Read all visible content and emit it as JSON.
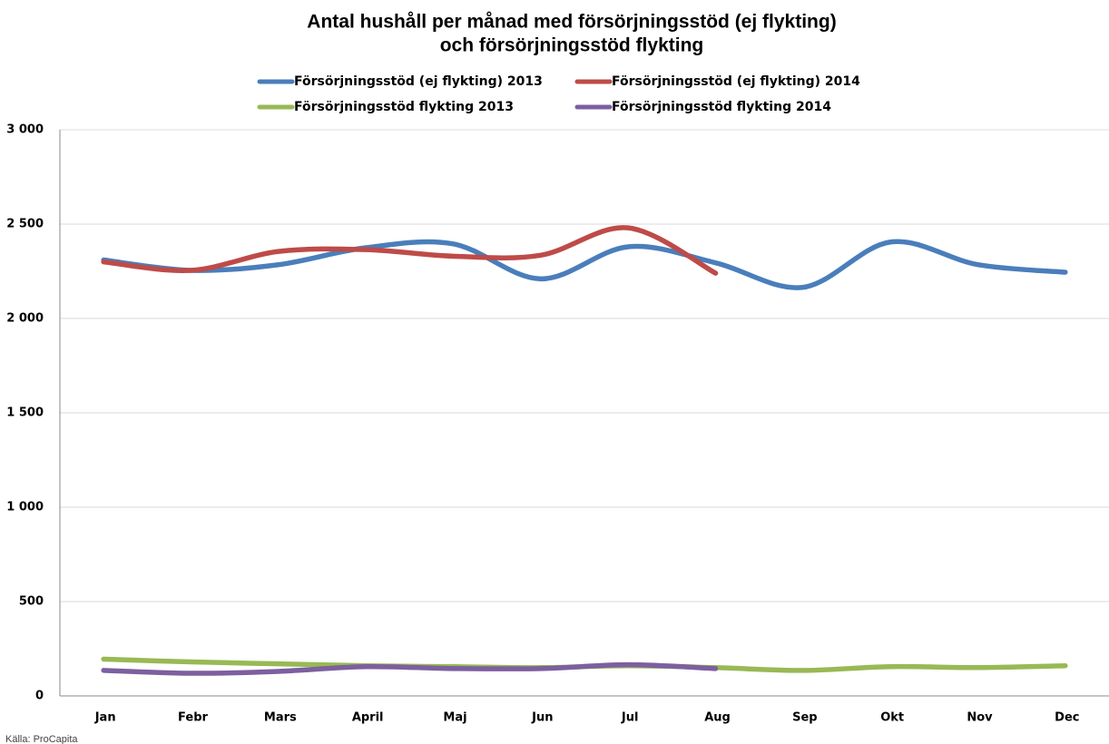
{
  "chart_data": {
    "type": "line",
    "title": [
      "Antal hushåll per månad med försörjningsstöd (ej flykting)",
      "och försörjningsstöd flykting"
    ],
    "categories": [
      "Jan",
      "Febr",
      "Mars",
      "April",
      "Maj",
      "Jun",
      "Jul",
      "Aug",
      "Sep",
      "Okt",
      "Nov",
      "Dec"
    ],
    "series": [
      {
        "name": "Försörjningsstöd (ej flykting) 2013",
        "color": "#4a7ebb",
        "values": [
          2310,
          2255,
          2285,
          2375,
          2395,
          2210,
          2380,
          2295,
          2165,
          2405,
          2285,
          2245
        ]
      },
      {
        "name": "Försörjningsstöd (ej flykting) 2014",
        "color": "#be4b48",
        "values": [
          2300,
          2255,
          2355,
          2365,
          2330,
          2335,
          2480,
          2240,
          null,
          null,
          null,
          null
        ]
      },
      {
        "name": "Försörjningsstöd flykting 2013",
        "color": "#98b954",
        "values": [
          195,
          180,
          170,
          160,
          155,
          150,
          160,
          150,
          135,
          155,
          150,
          160
        ]
      },
      {
        "name": "Försörjningsstöd flykting 2014",
        "color": "#7d5fa0",
        "values": [
          135,
          120,
          130,
          155,
          145,
          145,
          165,
          145,
          null,
          null,
          null,
          null
        ]
      }
    ],
    "ylim": [
      0,
      3000
    ],
    "yticks": [
      0,
      500,
      {
        "value": 1000,
        "label": "1 000"
      },
      {
        "value": 1500,
        "label": "1 500"
      },
      {
        "value": 2000,
        "label": "2 000"
      },
      {
        "value": 2500,
        "label": "2 500"
      },
      {
        "value": 3000,
        "label": "3 000"
      }
    ],
    "grid": true,
    "smooth": true,
    "legend": "top",
    "source": "Källa: ProCapita"
  }
}
